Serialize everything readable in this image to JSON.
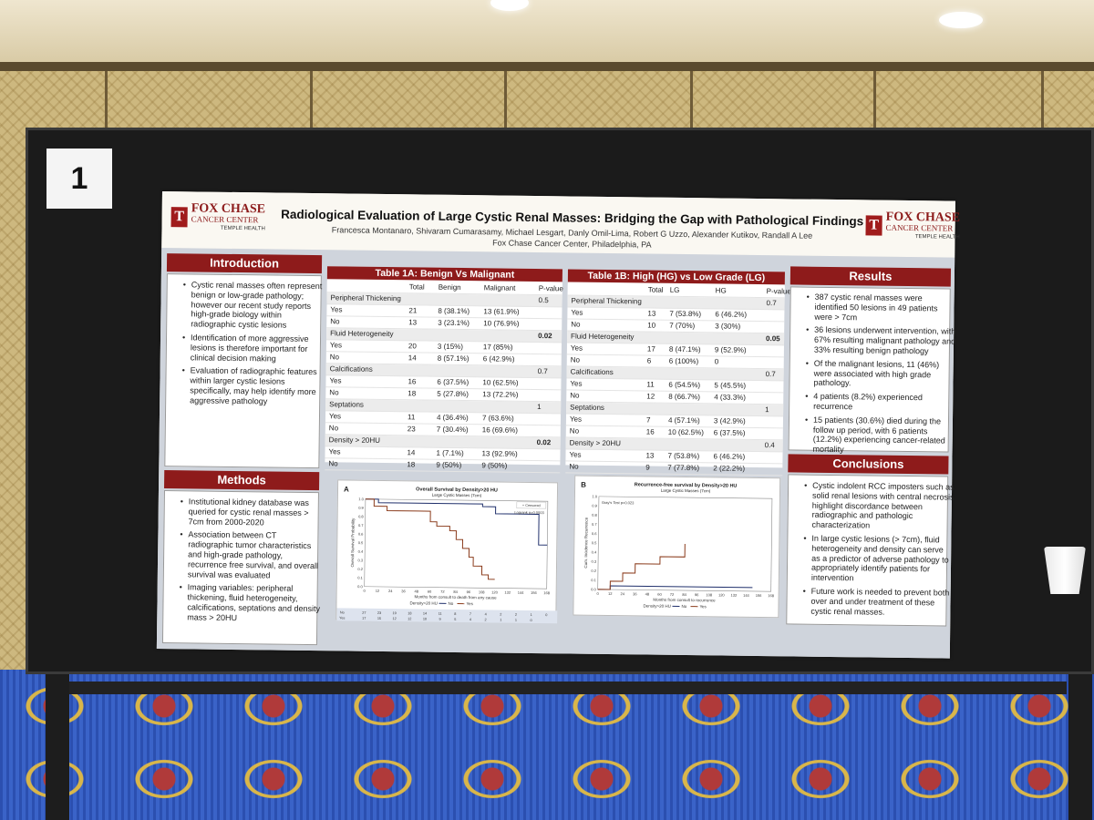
{
  "board": {
    "number": "1"
  },
  "poster": {
    "logo": {
      "name": "FOX CHASE",
      "sub": "CANCER CENTER",
      "tag": "TEMPLE HEALTH",
      "mark": "T"
    },
    "title": "Radiological Evaluation of Large Cystic Renal Masses: Bridging the Gap with Pathological Findings",
    "authors": "Francesca Montanaro, Shivaram Cumarasamy, Michael Lesgart, Danly Omil-Lima, Robert G Uzzo, Alexander Kutikov, Randall A Lee",
    "affiliation": "Fox Chase Cancer Center, Philadelphia, PA",
    "introduction": {
      "title": "Introduction",
      "bullets": [
        "Cystic renal masses often represent benign or low-grade pathology; however our recent study reports high-grade biology within radiographic cystic lesions",
        "Identification of more aggressive lesions is therefore important for clinical decision making",
        "Evaluation of radiographic features within larger cystic lesions specifically, may help identify more aggressive pathology"
      ]
    },
    "methods": {
      "title": "Methods",
      "bullets": [
        "Institutional kidney database was queried for cystic renal masses > 7cm from 2000-2020",
        "Association between CT radiographic tumor characteristics and high-grade pathology, recurrence free survival, and overall survival was evaluated",
        "Imaging variables: peripheral thickening, fluid heterogeneity, calcifications, septations and density mass > 20HU"
      ]
    },
    "results": {
      "title": "Results",
      "bullets": [
        "387 cystic renal masses were identified 50 lesions in 49 patients were > 7cm",
        "36 lesions underwent intervention, with 67% resulting malignant pathology and 33% resulting benign pathology",
        "Of the malignant lesions, 11 (46%) were associated with high grade pathology.",
        "4 patients (8.2%) experienced recurrence",
        "15 patients (30.6%) died during the follow up period, with 6 patients (12.2%) experiencing cancer-related mortality"
      ]
    },
    "conclusions": {
      "title": "Conclusions",
      "bullets": [
        "Cystic indolent RCC imposters such as solid renal lesions with central necrosis highlight discordance between radiographic and pathologic characterization",
        "In large cystic lesions (> 7cm), fluid heterogeneity and density can serve as a predictor of adverse pathology to appropriately identify patients for intervention",
        "Future work is needed to prevent both over and under treatment of these cystic renal masses."
      ]
    },
    "table1a": {
      "title": "Table 1A: Benign Vs Malignant",
      "headers": [
        "",
        "Total",
        "Benign",
        "Malignant",
        "P-value"
      ],
      "rows": [
        [
          "Peripheral Thickening",
          "",
          "",
          "",
          "0.5"
        ],
        [
          "Yes",
          "21",
          "8 (38.1%)",
          "13 (61.9%)",
          ""
        ],
        [
          "No",
          "13",
          "3 (23.1%)",
          "10 (76.9%)",
          ""
        ],
        [
          "Fluid Heterogeneity",
          "",
          "",
          "",
          "0.02"
        ],
        [
          "Yes",
          "20",
          "3 (15%)",
          "17 (85%)",
          ""
        ],
        [
          "No",
          "14",
          "8 (57.1%)",
          "6 (42.9%)",
          ""
        ],
        [
          "Calcifications",
          "",
          "",
          "",
          "0.7"
        ],
        [
          "Yes",
          "16",
          "6 (37.5%)",
          "10 (62.5%)",
          ""
        ],
        [
          "No",
          "18",
          "5 (27.8%)",
          "13 (72.2%)",
          ""
        ],
        [
          "Septations",
          "",
          "",
          "",
          "1"
        ],
        [
          "Yes",
          "11",
          "4 (36.4%)",
          "7 (63.6%)",
          ""
        ],
        [
          "No",
          "23",
          "7 (30.4%)",
          "16 (69.6%)",
          ""
        ],
        [
          "Density > 20HU",
          "",
          "",
          "",
          "0.02"
        ],
        [
          "Yes",
          "14",
          "1 (7.1%)",
          "13 (92.9%)",
          ""
        ],
        [
          "No",
          "18",
          "9 (50%)",
          "9 (50%)",
          ""
        ]
      ]
    },
    "table1b": {
      "title": "Table 1B: High (HG) vs Low Grade (LG)",
      "headers": [
        "",
        "Total",
        "LG",
        "HG",
        "P-value"
      ],
      "rows": [
        [
          "Peripheral Thickening",
          "",
          "",
          "",
          "0.7"
        ],
        [
          "Yes",
          "13",
          "7 (53.8%)",
          "6 (46.2%)",
          ""
        ],
        [
          "No",
          "10",
          "7 (70%)",
          "3 (30%)",
          ""
        ],
        [
          "Fluid Heterogeneity",
          "",
          "",
          "",
          "0.05"
        ],
        [
          "Yes",
          "17",
          "8 (47.1%)",
          "9 (52.9%)",
          ""
        ],
        [
          "No",
          "6",
          "6 (100%)",
          "0",
          ""
        ],
        [
          "Calcifications",
          "",
          "",
          "",
          "0.7"
        ],
        [
          "Yes",
          "11",
          "6 (54.5%)",
          "5 (45.5%)",
          ""
        ],
        [
          "No",
          "12",
          "8 (66.7%)",
          "4 (33.3%)",
          ""
        ],
        [
          "Septations",
          "",
          "",
          "",
          "1"
        ],
        [
          "Yes",
          "7",
          "4 (57.1%)",
          "3 (42.9%)",
          ""
        ],
        [
          "No",
          "16",
          "10 (62.5%)",
          "6 (37.5%)",
          ""
        ],
        [
          "Density > 20HU",
          "",
          "",
          "",
          "0.4"
        ],
        [
          "Yes",
          "13",
          "7 (53.8%)",
          "6 (46.2%)",
          ""
        ],
        [
          "No",
          "9",
          "7 (77.8%)",
          "2 (22.2%)",
          ""
        ]
      ]
    },
    "chart_os": {
      "panel": "A",
      "title": "Overall Survival by Density>20 HU",
      "subtitle": "Large Cystic Masses (7cm)",
      "ylabel": "Overall Survival Probability",
      "xlabel": "Months from consult to death from any cause",
      "annotation": "Logrank p=0.0003",
      "legend_marker": "+ Censored",
      "legend": "Density>20 HU",
      "legend_no": "No",
      "legend_yes": "Yes",
      "yticks": [
        "1.0",
        "0.9",
        "0.8",
        "0.7",
        "0.6",
        "0.5",
        "0.4",
        "0.3",
        "0.2",
        "0.1",
        "0.0"
      ],
      "xticks": [
        "0",
        "12",
        "24",
        "36",
        "48",
        "60",
        "72",
        "84",
        "96",
        "108",
        "120",
        "132",
        "144",
        "156",
        "168"
      ],
      "risk_no": [
        "No",
        "27",
        "23",
        "19",
        "18",
        "14",
        "11",
        "8",
        "7",
        "4",
        "2",
        "2",
        "1",
        "0"
      ],
      "risk_yes": [
        "Yes",
        "17",
        "15",
        "12",
        "12",
        "10",
        "9",
        "5",
        "4",
        "2",
        "1",
        "1",
        "0",
        ""
      ]
    },
    "chart_rfs": {
      "panel": "B",
      "title": "Recurrence-free survival by Density>20 HU",
      "subtitle": "Large Cystic Masses (7cm)",
      "ylabel": "Cum. Incidence Recurrence",
      "xlabel": "Months from consult to recurrence",
      "annotation": "Gray's Test p=0.023",
      "legend": "Density>20 HU",
      "legend_no": "No",
      "legend_yes": "Yes",
      "yticks": [
        "1.0",
        "0.9",
        "0.8",
        "0.7",
        "0.6",
        "0.5",
        "0.4",
        "0.3",
        "0.2",
        "0.1",
        "0.0"
      ],
      "xticks": [
        "0",
        "12",
        "24",
        "36",
        "48",
        "60",
        "72",
        "84",
        "96",
        "108",
        "120",
        "132",
        "144",
        "156",
        "168"
      ]
    },
    "colors": {
      "accent": "#8e1b1b",
      "line_no": "#1f2f6b",
      "line_yes": "#8a3a1a"
    }
  },
  "chart_data": [
    {
      "type": "line",
      "title": "Overall Survival by Density>20 HU",
      "xlabel": "Months from consult to death from any cause",
      "ylabel": "Overall Survival Probability",
      "xlim": [
        0,
        168
      ],
      "ylim": [
        0,
        1
      ],
      "series": [
        {
          "name": "No",
          "x": [
            0,
            12,
            40,
            72,
            96,
            108,
            120,
            140,
            158,
            160,
            168
          ],
          "y": [
            1.0,
            0.96,
            0.96,
            0.96,
            0.96,
            0.93,
            0.85,
            0.85,
            0.85,
            0.5,
            0.5
          ]
        },
        {
          "name": "Yes",
          "x": [
            0,
            8,
            20,
            48,
            60,
            66,
            78,
            84,
            90,
            96,
            100,
            108,
            114,
            120
          ],
          "y": [
            1.0,
            0.92,
            0.87,
            0.87,
            0.75,
            0.7,
            0.65,
            0.55,
            0.45,
            0.35,
            0.25,
            0.15,
            0.1,
            0.1
          ]
        }
      ]
    },
    {
      "type": "line",
      "title": "Recurrence-free survival by Density>20 HU",
      "xlabel": "Months from consult to recurrence",
      "ylabel": "Cum. Incidence Recurrence",
      "xlim": [
        0,
        168
      ],
      "ylim": [
        0,
        1
      ],
      "series": [
        {
          "name": "No",
          "x": [
            0,
            12,
            150
          ],
          "y": [
            0,
            0.04,
            0.04
          ]
        },
        {
          "name": "Yes",
          "x": [
            0,
            12,
            24,
            36,
            60,
            84,
            84
          ],
          "y": [
            0,
            0.09,
            0.18,
            0.28,
            0.36,
            0.36,
            0.5
          ]
        }
      ]
    }
  ]
}
